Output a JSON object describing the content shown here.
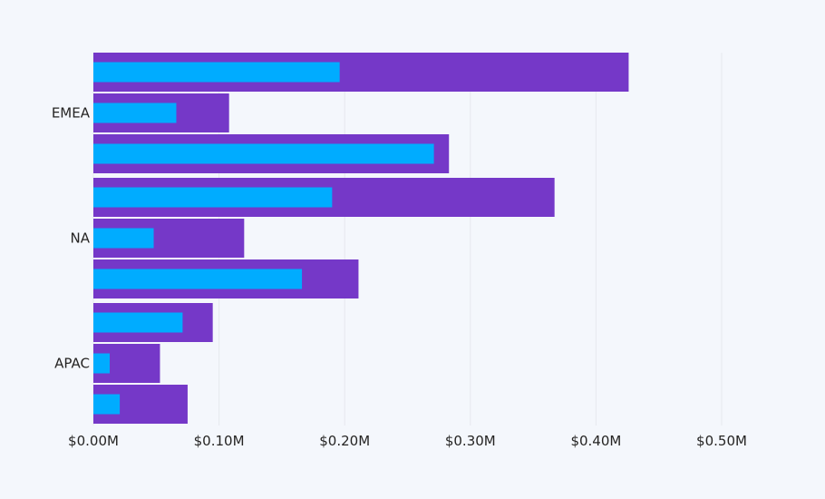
{
  "chart_data": {
    "type": "bar",
    "orientation": "horizontal",
    "title": "",
    "xlabel": "",
    "ylabel": "",
    "xlim": [
      0,
      0.5
    ],
    "x_ticks": [
      "$0.00M",
      "$0.10M",
      "$0.20M",
      "$0.30M",
      "$0.40M",
      "$0.50M"
    ],
    "x_tick_values": [
      0,
      0.1,
      0.2,
      0.3,
      0.4,
      0.5
    ],
    "grid": true,
    "legend": "none",
    "unit": "$M",
    "colors": {
      "outer": "#7538c8",
      "inner": "#00acff",
      "background": "#f4f7fc",
      "grid": "#e6e8ee"
    },
    "groups": [
      {
        "category": "EMEA",
        "bars": [
          {
            "outer": 0.426,
            "inner": 0.196
          },
          {
            "outer": 0.108,
            "inner": 0.066
          },
          {
            "outer": 0.283,
            "inner": 0.271
          }
        ]
      },
      {
        "category": "NA",
        "bars": [
          {
            "outer": 0.367,
            "inner": 0.19
          },
          {
            "outer": 0.12,
            "inner": 0.048
          },
          {
            "outer": 0.211,
            "inner": 0.166
          }
        ]
      },
      {
        "category": "APAC",
        "bars": [
          {
            "outer": 0.095,
            "inner": 0.071
          },
          {
            "outer": 0.053,
            "inner": 0.013
          },
          {
            "outer": 0.075,
            "inner": 0.021
          }
        ]
      }
    ]
  }
}
